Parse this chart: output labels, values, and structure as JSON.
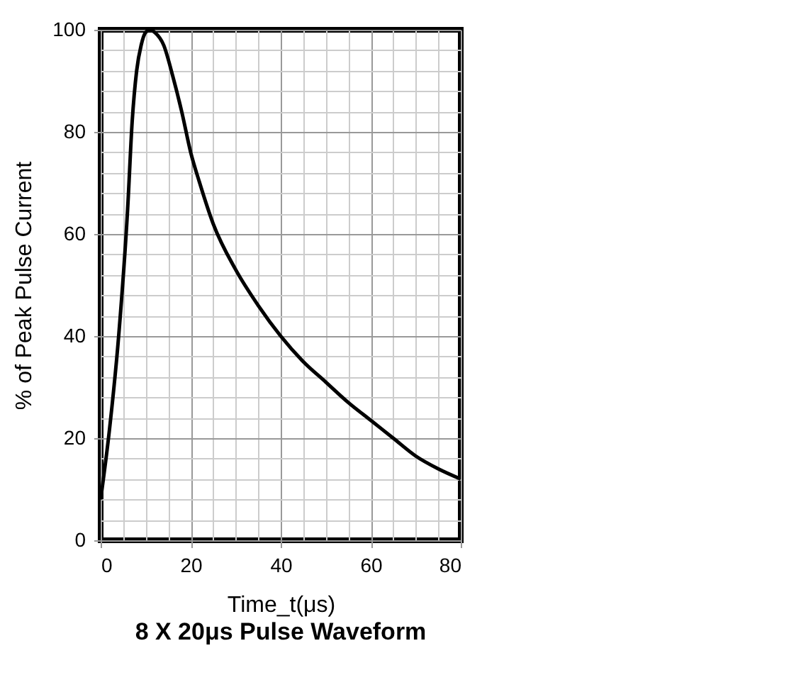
{
  "chart_data": {
    "type": "line",
    "title": "8 X 20μs Pulse Waveform",
    "xlabel": "Time_t(μs)",
    "ylabel": "% of Peak Pulse Current",
    "x": [
      0,
      2,
      4,
      6,
      7,
      8,
      9,
      10,
      11,
      12,
      14,
      16,
      18,
      20,
      22,
      25,
      30,
      35,
      40,
      45,
      50,
      55,
      60,
      65,
      70,
      75,
      80
    ],
    "series": [
      {
        "color": "#000000",
        "values": [
          8,
          22,
          40,
          65,
          82,
          92,
          97,
          99.5,
          100,
          99.5,
          97,
          91,
          84,
          76,
          70,
          62,
          53,
          46,
          40,
          35,
          31,
          27,
          23.5,
          20,
          16.5,
          14,
          12
        ]
      }
    ],
    "xlim": [
      0,
      80
    ],
    "ylim": [
      0,
      100
    ],
    "xticks": [
      0,
      {
        "value": 5,
        "label": null
      },
      {
        "value": 10,
        "label": null
      },
      {
        "value": 15,
        "label": null
      },
      20,
      {
        "value": 25,
        "label": null
      },
      {
        "value": 30,
        "label": null
      },
      {
        "value": 35,
        "label": null
      },
      40,
      {
        "value": 45,
        "label": null
      },
      {
        "value": 50,
        "label": null
      },
      {
        "value": 55,
        "label": null
      },
      60,
      {
        "value": 65,
        "label": null
      },
      {
        "value": 70,
        "label": null
      },
      {
        "value": 75,
        "label": null
      },
      80
    ],
    "yticks": [
      0,
      {
        "value": 4,
        "label": null
      },
      {
        "value": 8,
        "label": null
      },
      {
        "value": 12,
        "label": null
      },
      {
        "value": 16,
        "label": null
      },
      20,
      {
        "value": 24,
        "label": null
      },
      {
        "value": 28,
        "label": null
      },
      {
        "value": 32,
        "label": null
      },
      {
        "value": 36,
        "label": null
      },
      40,
      {
        "value": 44,
        "label": null
      },
      {
        "value": 48,
        "label": null
      },
      {
        "value": 52,
        "label": null
      },
      {
        "value": 56,
        "label": null
      },
      60,
      {
        "value": 64,
        "label": null
      },
      {
        "value": 68,
        "label": null
      },
      {
        "value": 72,
        "label": null
      },
      {
        "value": 76,
        "label": null
      },
      80,
      {
        "value": 84,
        "label": null
      },
      {
        "value": 88,
        "label": null
      },
      {
        "value": 92,
        "label": null
      },
      {
        "value": 96,
        "label": null
      },
      100
    ],
    "grid": true,
    "marker": "none",
    "line_style": "solid"
  }
}
